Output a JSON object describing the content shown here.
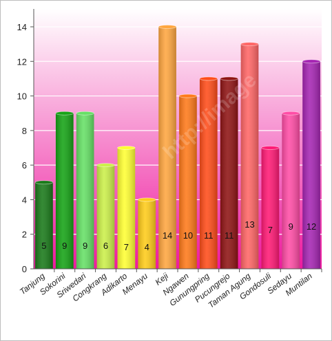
{
  "chart_data": {
    "type": "bar",
    "title": "",
    "xlabel": "",
    "ylabel": "",
    "ylim": [
      0,
      14
    ],
    "yticks": [
      0,
      2,
      4,
      6,
      8,
      10,
      12,
      14
    ],
    "grid": true,
    "categories": [
      "Tanjung",
      "Sokorini",
      "Sriwedari",
      "Congkrang",
      "Adikarto",
      "Menayu",
      "Keji",
      "Ngawen",
      "Gunungpring",
      "Pucungrejo",
      "Taman Agung",
      "Gondosuli",
      "Sedayu",
      "Muntilan"
    ],
    "values": [
      5,
      9,
      9,
      6,
      7,
      4,
      14,
      10,
      11,
      11,
      13,
      7,
      9,
      12
    ],
    "bar_colors": [
      "#1a7a1a",
      "#16a316",
      "#66e066",
      "#ccf04a",
      "#ffff33",
      "#ffcc1a",
      "#ffa640",
      "#ff7a1a",
      "#ff4d1a",
      "#8f1414",
      "#ff6666",
      "#ff1a75",
      "#ff4da6",
      "#a626b3"
    ],
    "background_gradient": [
      "#ffffff",
      "#ee1a9e"
    ]
  },
  "watermark": "http://image"
}
